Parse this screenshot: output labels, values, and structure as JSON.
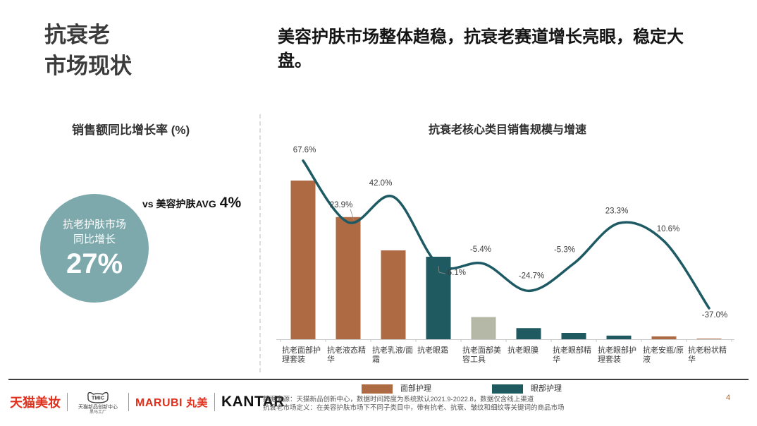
{
  "slide": {
    "title_lines": [
      "抗衰老",
      "市场现状"
    ],
    "headline": "美容护肤市场整体趋稳，抗衰老赛道增长亮眼，稳定大盘。",
    "page_number": "4"
  },
  "left_panel": {
    "header": "销售额同比增长率 (%)",
    "kpi_circle": {
      "line1": "抗老护肤市场",
      "line2": "同比增长",
      "value": "27%",
      "color": "#7da9ad"
    },
    "benchmark": {
      "prefix": "vs 美容护肤AVG",
      "value": "4%"
    }
  },
  "chart_data": {
    "type": "bar",
    "title": "抗衰老核心类目销售规模与增速",
    "categories": [
      "抗老面部护理套装",
      "抗老液态精华",
      "抗老乳液/面霜",
      "抗老眼霜",
      "抗老面部美容工具",
      "抗老眼膜",
      "抗老眼部精华",
      "抗老眼部护理套装",
      "抗老安瓶/原液",
      "抗老粉状精华"
    ],
    "series": [
      {
        "name": "销售规模（柱形，无数值轴，相对高度估值0-100）",
        "type": "bar",
        "values": [
          100,
          77,
          56,
          52,
          14,
          7,
          4,
          2.3,
          1.8,
          0.4
        ],
        "groups": [
          "face",
          "face",
          "face",
          "eye",
          "tool",
          "eye",
          "eye",
          "eye",
          "face",
          "face"
        ]
      },
      {
        "name": "同比增速",
        "type": "line",
        "values": [
          67.6,
          23.9,
          42.0,
          -6.1,
          -5.4,
          -24.7,
          -5.3,
          23.3,
          10.6,
          -37.0
        ],
        "labels": [
          "67.6%",
          "23.9%",
          "42.0%",
          "-6.1%",
          "-5.4%",
          "-24.7%",
          "-5.3%",
          "23.3%",
          "10.6%",
          "-37.0%"
        ]
      }
    ],
    "colors": {
      "face": "#ae6a43",
      "eye": "#1e5a60",
      "tool": "#b6b8a7",
      "line": "#1d5a63",
      "axis": "#c9c9c9",
      "label_text": "#3d3d3d"
    },
    "legend": [
      {
        "label": "面部护理",
        "color_key": "face"
      },
      {
        "label": "眼部护理",
        "color_key": "eye"
      }
    ],
    "legend_position": "bottom",
    "grid": false
  },
  "footer": {
    "logos": {
      "tmall_beauty": "天猫美妆",
      "tmic_badge": "TMIC",
      "tmic_line1": "天猫新品创新中心",
      "tmic_line2": "黑马工厂",
      "marubi_latin": "MARUBI",
      "marubi_cjk": "丸美",
      "kantar": "KANTAR",
      "brand_red": "#e0301c",
      "kantar_black": "#111111"
    },
    "source_lines": [
      "数据来源：天猫新品创新中心，数据时间跨度为系统默认2021.9-2022.8，数据仅含线上渠道",
      "抗衰老市场定义：在美容护肤市场下不同子类目中，带有抗老、抗衰、皱纹和细纹等关键词的商品市场"
    ]
  }
}
